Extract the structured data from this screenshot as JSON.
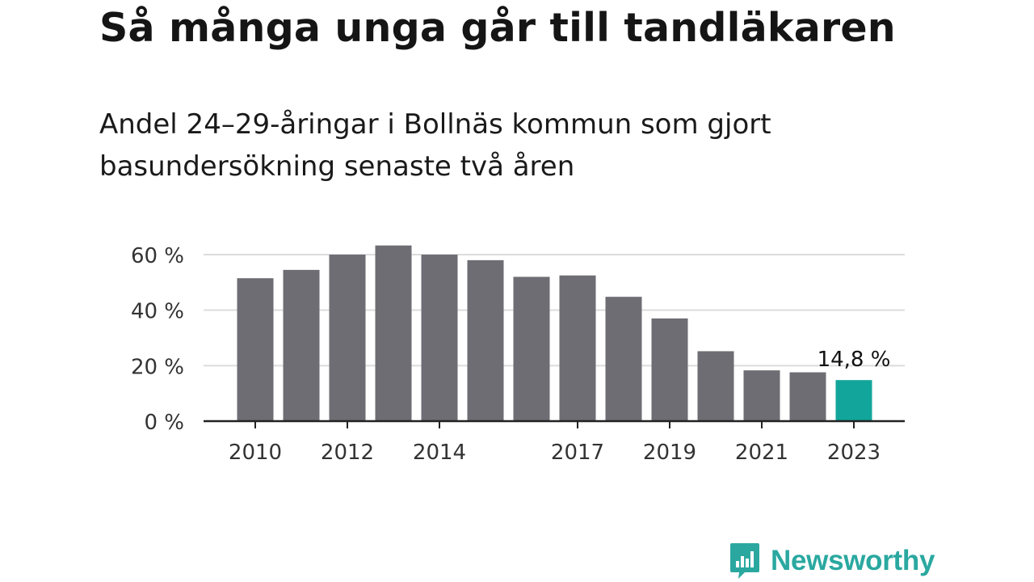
{
  "title": "Så många unga går till tandläkaren",
  "subtitle": "Andel 24–29-åringar i Bollnäs kommun som gjort basundersökning senaste två åren",
  "brand": "Newsworthy",
  "colors": {
    "bar": "#6e6d73",
    "highlight": "#12a59b",
    "grid": "#dcdcdc",
    "axis": "#222222",
    "brand": "#2aa8a0"
  },
  "chart_data": {
    "type": "bar",
    "categories": [
      "2010",
      "2011",
      "2012",
      "2013",
      "2014",
      "2015",
      "2016",
      "2017",
      "2018",
      "2019",
      "2020",
      "2021",
      "2022",
      "2023"
    ],
    "values": [
      51.5,
      54.5,
      60,
      63.3,
      60,
      58,
      52,
      52.5,
      44.8,
      37,
      25.2,
      18.3,
      17.6,
      14.8
    ],
    "x_tick_labels": [
      "2010",
      "",
      "2012",
      "",
      "2014",
      "",
      "",
      "2017",
      "",
      "2019",
      "",
      "2021",
      "",
      "2023"
    ],
    "y_ticks": [
      0,
      20,
      40,
      60
    ],
    "y_tick_labels": [
      "0 %",
      "20 %",
      "40 %",
      "60 %"
    ],
    "ylim": [
      0,
      60
    ],
    "highlight_index": 13,
    "annotation": "14,8 %",
    "grid": true
  }
}
